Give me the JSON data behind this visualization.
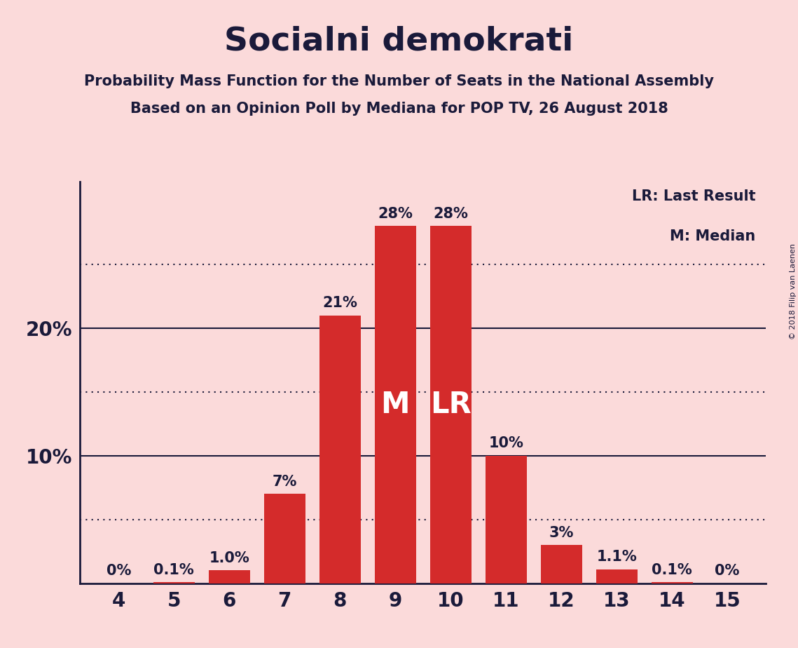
{
  "title": "Socialni demokrati",
  "subtitle1": "Probability Mass Function for the Number of Seats in the National Assembly",
  "subtitle2": "Based on an Opinion Poll by Mediana for POP TV, 26 August 2018",
  "copyright": "© 2018 Filip van Laenen",
  "seats": [
    4,
    5,
    6,
    7,
    8,
    9,
    10,
    11,
    12,
    13,
    14,
    15
  ],
  "values": [
    0.0,
    0.001,
    0.01,
    0.07,
    0.21,
    0.28,
    0.28,
    0.1,
    0.03,
    0.011,
    0.001,
    0.0
  ],
  "labels": [
    "0%",
    "0.1%",
    "1.0%",
    "7%",
    "21%",
    "28%",
    "28%",
    "10%",
    "3%",
    "1.1%",
    "0.1%",
    "0%"
  ],
  "bar_color": "#D42B2B",
  "bg_color": "#FBDADA",
  "text_color": "#1a1a3a",
  "median_seat": 9,
  "lr_seat": 10,
  "yticks": [
    0.0,
    0.1,
    0.2
  ],
  "ytick_labels": [
    "",
    "10%",
    "20%"
  ],
  "dotted_lines": [
    0.05,
    0.15,
    0.25
  ],
  "solid_lines": [
    0.1,
    0.2
  ],
  "legend_text1": "LR: Last Result",
  "legend_text2": "M: Median",
  "ylim": [
    0,
    0.315
  ],
  "xlim": [
    3.3,
    15.7
  ],
  "bar_width": 0.75
}
